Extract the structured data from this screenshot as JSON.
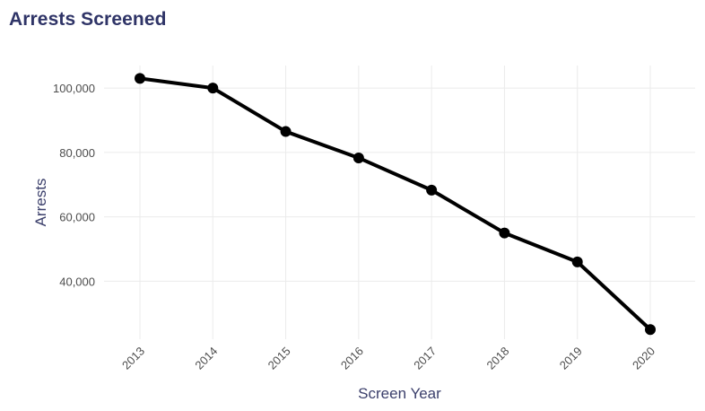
{
  "chart_data": {
    "type": "line",
    "title": "Arrests Screened",
    "xlabel": "Screen Year",
    "ylabel": "Arrests",
    "x": [
      "2013",
      "2014",
      "2015",
      "2016",
      "2017",
      "2018",
      "2019",
      "2020"
    ],
    "series": [
      {
        "values": [
          103000,
          100000,
          86500,
          78300,
          68300,
          55000,
          46000,
          25000
        ],
        "color": "#000000"
      }
    ],
    "ylim": [
      22000,
      107000
    ],
    "yticks": [
      40000,
      60000,
      80000,
      100000
    ],
    "ytick_labels": [
      "40,000",
      "60,000",
      "80,000",
      "100,000"
    ],
    "grid": true,
    "legend": "none"
  },
  "colors": {
    "title": "#2f3467",
    "axis_title": "#3b3f6b",
    "tick_text": "#4d4d4d",
    "grid": "#ebebeb"
  }
}
